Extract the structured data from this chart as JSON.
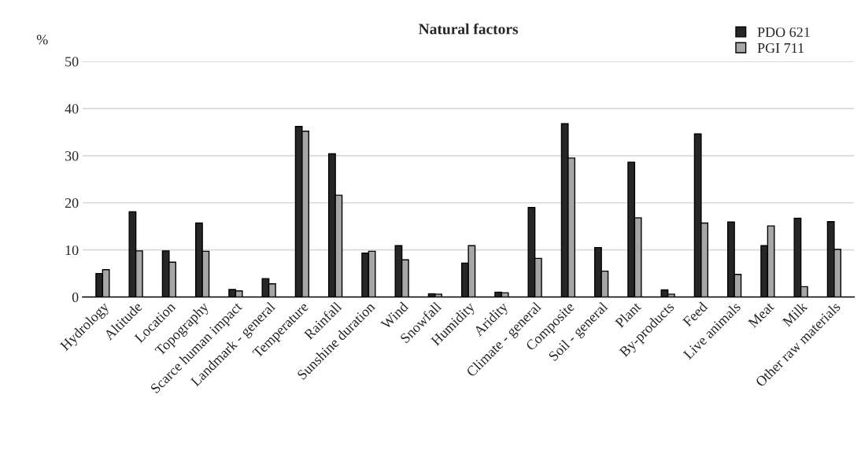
{
  "chart_data": {
    "type": "bar",
    "title": "Natural factors",
    "ylabel": "%",
    "categories": [
      "Hydrology",
      "Altitude",
      "Location",
      "Topography",
      "Scarce human impact",
      "Landmark - general",
      "Temperature",
      "Rainfall",
      "Sunshine duration",
      "Wind",
      "Snowfall",
      "Humidity",
      "Aridity",
      "Climate - general",
      "Composite",
      "Soil - general",
      "Plant",
      "By-products",
      "Feed",
      "Live animals",
      "Meat",
      "Milk",
      "Other raw materials"
    ],
    "series": [
      {
        "name": "PDO 621",
        "color": "#262626",
        "values": [
          5.0,
          18.1,
          9.8,
          15.7,
          1.6,
          3.9,
          36.2,
          30.4,
          9.3,
          10.9,
          0.7,
          7.2,
          1.0,
          19.0,
          36.8,
          10.5,
          28.6,
          1.5,
          34.6,
          15.9,
          10.9,
          16.7,
          16.0
        ]
      },
      {
        "name": "PGI 711",
        "color": "#a6a6a6",
        "values": [
          5.8,
          9.8,
          7.4,
          9.7,
          1.3,
          2.8,
          35.2,
          21.6,
          9.7,
          7.9,
          0.6,
          10.9,
          0.9,
          8.2,
          29.5,
          5.5,
          16.8,
          0.6,
          15.7,
          4.8,
          15.1,
          2.2,
          10.1
        ]
      }
    ],
    "ylim": [
      0,
      50
    ],
    "yticks": [
      0,
      10,
      20,
      30,
      40,
      50
    ],
    "grid": "y",
    "legend": "top right"
  }
}
